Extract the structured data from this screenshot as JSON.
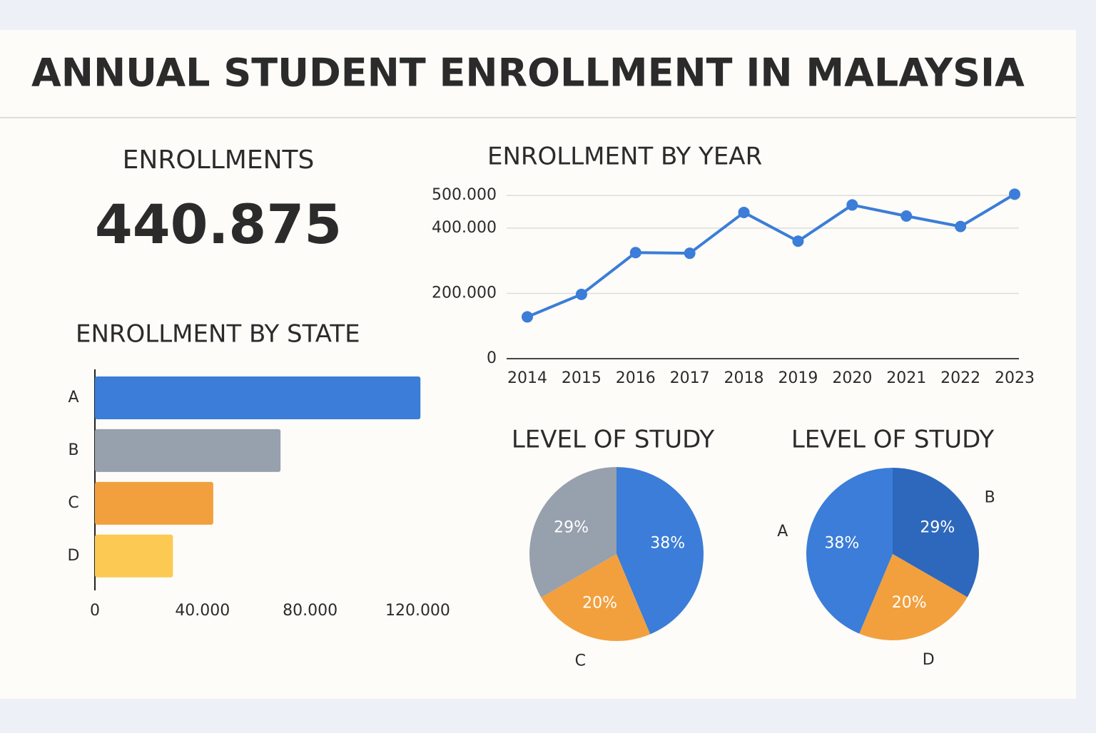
{
  "header": {
    "title": "ANNUAL STUDENT ENROLLMENT IN MALAYSIA"
  },
  "kpi": {
    "label": "ENROLLMENTS",
    "value": "440.875"
  },
  "chart_data": [
    {
      "type": "line",
      "title": "ENROLLMENT BY YEAR",
      "categories": [
        "2014",
        "2015",
        "2016",
        "2017",
        "2018",
        "2019",
        "2020",
        "2021",
        "2022",
        "2023"
      ],
      "values": [
        128000,
        197000,
        325000,
        323000,
        448000,
        360000,
        471000,
        437000,
        405000,
        504000
      ],
      "color": "#3b7dd8",
      "ylim": [
        0,
        520000
      ],
      "yticks": [
        0,
        {
          "value": 200000,
          "label": "200.000"
        },
        {
          "value": 400000,
          "label": "400.000"
        },
        {
          "value": 500000,
          "label": "500.000"
        }
      ],
      "grid": true
    },
    {
      "type": "hbar",
      "title": "ENROLLMENT BY STATE",
      "categories": [
        "A",
        "B",
        "C",
        "D"
      ],
      "values": [
        121000,
        69000,
        44000,
        29000
      ],
      "colors": [
        "#3b7dd8",
        "#97a0ad",
        "#f2a03d",
        "#fcc952"
      ],
      "xlim": [
        0,
        122000
      ],
      "xticks": [
        0,
        {
          "value": 40000,
          "label": "40.000"
        },
        {
          "value": 80000,
          "label": "80.000"
        },
        {
          "value": 120000,
          "label": "120.000"
        }
      ]
    },
    {
      "type": "pie",
      "title": "LEVEL OF STUDY",
      "categories": [
        null,
        "C",
        null
      ],
      "values": [
        38,
        20,
        29
      ],
      "value_labels": [
        "38%",
        "20%",
        "29%"
      ],
      "colors": [
        "#3b7dd8",
        "#f2a03d",
        "#97a0ad"
      ]
    },
    {
      "type": "pie",
      "title": "LEVEL OF STUDY",
      "categories": [
        "B",
        "D",
        "A"
      ],
      "values": [
        29,
        20,
        38
      ],
      "value_labels": [
        "29%",
        "20%",
        "38%"
      ],
      "colors": [
        "#2e68bd",
        "#f2a03d",
        "#3b7dd8"
      ]
    }
  ]
}
